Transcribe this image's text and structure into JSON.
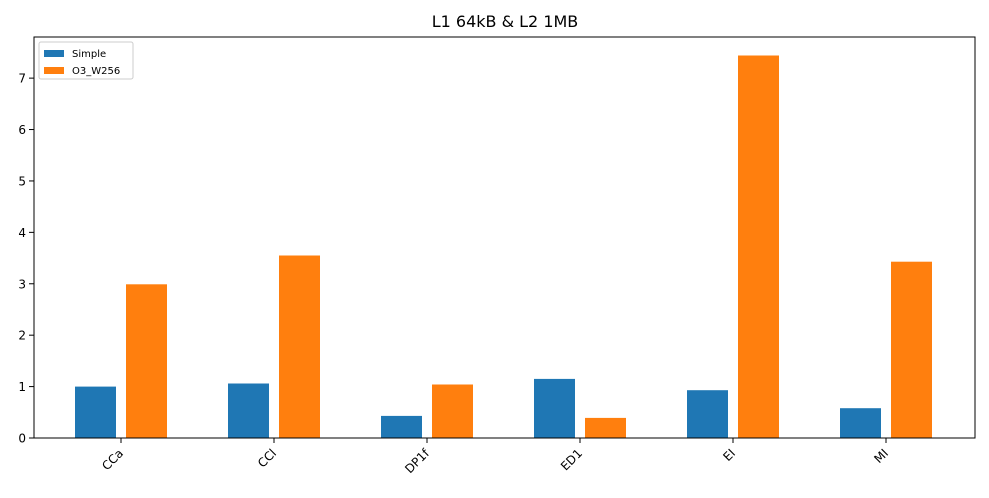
{
  "chart_data": {
    "type": "bar",
    "title": "L1 64kB & L2 1MB",
    "xlabel": "",
    "ylabel": "",
    "categories": [
      "CCa",
      "CCl",
      "DP1f",
      "ED1",
      "EI",
      "MI"
    ],
    "series": [
      {
        "name": "Simple",
        "color": "#1f77b4",
        "values": [
          1.0,
          1.06,
          0.43,
          1.15,
          0.93,
          0.58
        ]
      },
      {
        "name": "O3_W256",
        "color": "#ff7f0e",
        "values": [
          2.99,
          3.55,
          1.04,
          0.39,
          7.44,
          3.43
        ]
      }
    ],
    "ylim": [
      0,
      7.8
    ],
    "yticks": [
      "0",
      "1",
      "2",
      "3",
      "4",
      "5",
      "6",
      "7"
    ],
    "grid": false,
    "legend_position": "top-left"
  }
}
